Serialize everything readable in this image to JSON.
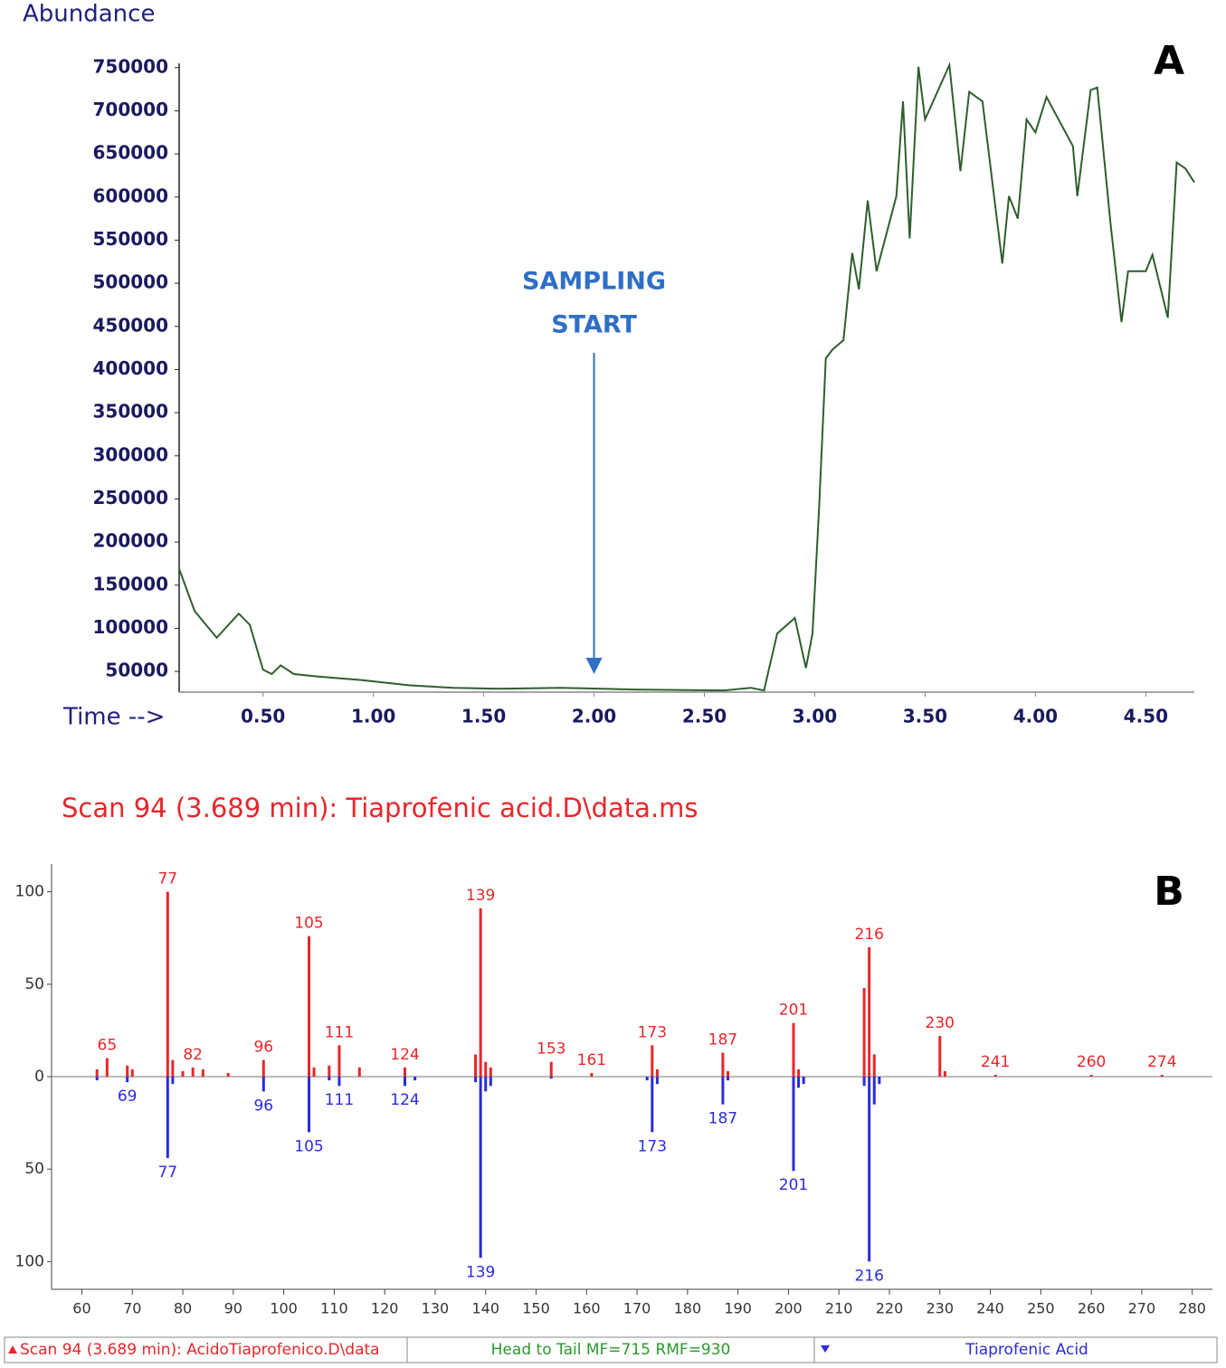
{
  "chart_data": [
    {
      "type": "line",
      "panel_label": "A",
      "y_label": "Abundance",
      "x_label": "Time -->",
      "color": "#2e5e2e",
      "annotation": {
        "text": [
          "SAMPLING",
          "START"
        ],
        "x": 2.0,
        "y": 47000,
        "color": "#2f6fc4"
      },
      "xlim": [
        0.12,
        4.72
      ],
      "ylim": [
        26000,
        755000
      ],
      "xticks": [
        {
          "value": 0.5,
          "label": "0.50"
        },
        {
          "value": 1,
          "label": "1.00"
        },
        {
          "value": 1.5,
          "label": "1.50"
        },
        {
          "value": 2,
          "label": "2.00"
        },
        {
          "value": 2.5,
          "label": "2.50"
        },
        {
          "value": 3,
          "label": "3.00"
        },
        {
          "value": 3.5,
          "label": "3.50"
        },
        {
          "value": 4,
          "label": "4.00"
        },
        {
          "value": 4.5,
          "label": "4.50"
        }
      ],
      "yticks": [
        50000,
        100000,
        150000,
        200000,
        250000,
        300000,
        350000,
        400000,
        450000,
        500000,
        550000,
        600000,
        650000,
        700000,
        750000
      ],
      "x": [
        0.12,
        0.19,
        0.29,
        0.39,
        0.44,
        0.5,
        0.54,
        0.58,
        0.64,
        0.75,
        0.95,
        1.16,
        1.36,
        1.57,
        1.85,
        2.18,
        2.59,
        2.71,
        2.77,
        2.83,
        2.91,
        2.96,
        2.99,
        3.02,
        3.05,
        3.08,
        3.13,
        3.17,
        3.2,
        3.24,
        3.28,
        3.37,
        3.4,
        3.43,
        3.47,
        3.5,
        3.61,
        3.66,
        3.7,
        3.76,
        3.85,
        3.88,
        3.92,
        3.96,
        4.0,
        4.05,
        4.17,
        4.19,
        4.25,
        4.28,
        4.34,
        4.39,
        4.42,
        4.5,
        4.53,
        4.6,
        4.64,
        4.68,
        4.72
      ],
      "values": [
        169000,
        120000,
        89000,
        117000,
        104000,
        52000,
        47000,
        57000,
        47000,
        44000,
        40000,
        34000,
        31000,
        30000,
        31000,
        29000,
        28000,
        31000,
        28000,
        94000,
        112000,
        54000,
        94000,
        240000,
        413000,
        423000,
        434000,
        535000,
        493000,
        596000,
        514000,
        601000,
        711000,
        552000,
        751000,
        690000,
        753000,
        630000,
        722000,
        711000,
        523000,
        601000,
        575000,
        690000,
        675000,
        716000,
        659000,
        601000,
        724000,
        727000,
        570000,
        455000,
        514000,
        514000,
        533000,
        460000,
        640000,
        633000,
        617000
      ]
    },
    {
      "type": "mirror-stem",
      "panel_label": "B",
      "title": "Scan 94 (3.689 min): Tiaprofenic acid.D\\data.ms",
      "match_label": "Head to Tail MF=715 RMF=930",
      "xlim": [
        54,
        284
      ],
      "ylim": [
        -115,
        115
      ],
      "xticks": [
        60,
        70,
        80,
        90,
        100,
        110,
        120,
        130,
        140,
        150,
        160,
        170,
        180,
        190,
        200,
        210,
        220,
        230,
        240,
        250,
        260,
        270,
        280
      ],
      "yticks": [
        100,
        50,
        0,
        {
          "value": -50,
          "label": "50"
        },
        {
          "value": -100,
          "label": "100"
        }
      ],
      "series": [
        {
          "name": "Scan 94 (3.689 min): AcidoTiaprofenico.D\\data",
          "color": "#e8262b",
          "x": [
            63,
            65,
            69,
            70,
            77,
            78,
            80,
            82,
            84,
            89,
            96,
            105,
            106,
            109,
            111,
            115,
            124,
            138,
            139,
            140,
            141,
            153,
            161,
            173,
            174,
            187,
            188,
            201,
            202,
            215,
            216,
            217,
            230,
            231,
            241,
            260,
            274
          ],
          "values": [
            4,
            10,
            6,
            4,
            100,
            9,
            3,
            5,
            4,
            2,
            9,
            76,
            5,
            6,
            17,
            5,
            5,
            12,
            91,
            8,
            5,
            8,
            2,
            17,
            4,
            13,
            3,
            29,
            4,
            48,
            70,
            12,
            22,
            3,
            1,
            1,
            1
          ],
          "labeled": [
            false,
            true,
            false,
            false,
            true,
            false,
            false,
            true,
            false,
            false,
            true,
            true,
            false,
            false,
            true,
            false,
            true,
            false,
            true,
            false,
            false,
            true,
            true,
            true,
            false,
            true,
            false,
            true,
            false,
            false,
            true,
            false,
            true,
            false,
            true,
            true,
            true
          ]
        },
        {
          "name": "Tiaprofenic Acid",
          "color": "#2b2bd9",
          "x": [
            63,
            69,
            77,
            78,
            96,
            105,
            109,
            111,
            124,
            126,
            138,
            139,
            140,
            141,
            153,
            172,
            173,
            174,
            187,
            188,
            201,
            202,
            203,
            215,
            216,
            217,
            218
          ],
          "values": [
            -2,
            -3,
            -44,
            -4,
            -8,
            -30,
            -2,
            -5,
            -5,
            -2,
            -3,
            -98,
            -8,
            -5,
            -1,
            -2,
            -30,
            -4,
            -15,
            -2,
            -51,
            -6,
            -4,
            -5,
            -100,
            -15,
            -4
          ],
          "labeled": [
            false,
            true,
            true,
            false,
            true,
            true,
            false,
            true,
            true,
            false,
            false,
            true,
            false,
            false,
            false,
            false,
            true,
            false,
            true,
            false,
            true,
            false,
            false,
            false,
            true,
            false,
            false
          ]
        }
      ]
    }
  ]
}
